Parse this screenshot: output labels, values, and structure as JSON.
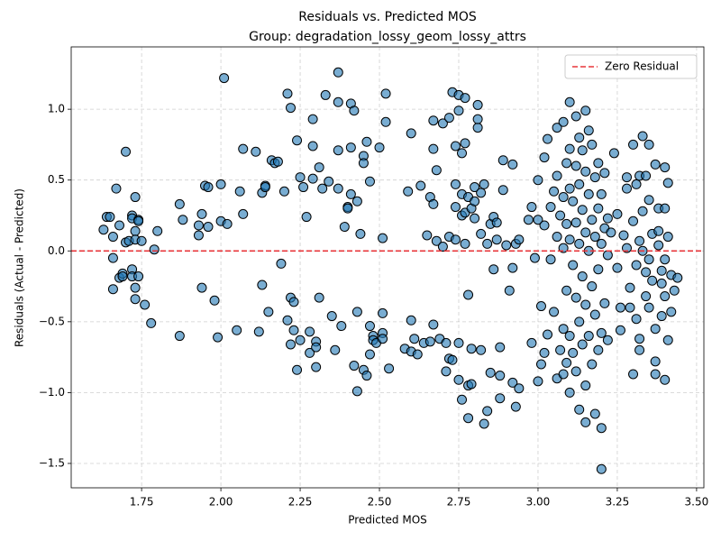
{
  "chart_data": {
    "type": "scatter",
    "title": "Residuals vs. Predicted MOS",
    "subtitle": "Group: degradation_lossy_geom_lossy_attrs",
    "x_label": "Predicted MOS",
    "y_label": "Residuals (Actual - Predicted)",
    "color": "#1f77b4",
    "grid": true,
    "legend_position": "upper-right",
    "reference_line": {
      "name": "Zero Residual",
      "value": 0,
      "color": "#e8363a"
    },
    "xlim": [
      1.528,
      3.523
    ],
    "ylim": [
      -1.672,
      1.44
    ],
    "xticks": [
      1.75,
      {
        "value": 2,
        "label": "2.00"
      },
      2.25,
      {
        "value": 2.5,
        "label": "2.50"
      },
      2.75,
      {
        "value": 3,
        "label": "3.00"
      },
      3.25,
      {
        "value": 3.5,
        "label": "3.50"
      }
    ],
    "yticks": [
      {
        "value": -1.5,
        "label": "−1.5"
      },
      {
        "value": -1,
        "label": "−1.0"
      },
      {
        "value": -0.5,
        "label": "−0.5"
      },
      {
        "value": 0,
        "label": "0.0"
      },
      {
        "value": 0.5,
        "label": "0.5"
      },
      {
        "value": 1,
        "label": "1.0"
      }
    ],
    "x": [
      1.63,
      1.64,
      1.65,
      1.66,
      1.66,
      1.66,
      1.67,
      1.68,
      1.68,
      1.69,
      1.69,
      1.7,
      1.7,
      1.71,
      1.72,
      1.72,
      1.72,
      1.72,
      1.73,
      1.73,
      1.73,
      1.73,
      1.73,
      1.74,
      1.74,
      1.74,
      1.75,
      1.76,
      1.78,
      1.79,
      1.8,
      1.87,
      1.87,
      1.88,
      1.93,
      1.93,
      1.94,
      1.94,
      1.95,
      1.96,
      1.96,
      1.98,
      1.99,
      2.0,
      2.0,
      2.01,
      2.02,
      2.05,
      2.06,
      2.07,
      2.07,
      2.11,
      2.12,
      2.13,
      2.13,
      2.14,
      2.14,
      2.15,
      2.16,
      2.17,
      2.18,
      2.19,
      2.2,
      2.21,
      2.21,
      2.22,
      2.22,
      2.22,
      2.23,
      2.23,
      2.24,
      2.24,
      2.25,
      2.25,
      2.26,
      2.27,
      2.28,
      2.28,
      2.29,
      2.29,
      2.29,
      2.3,
      2.3,
      2.3,
      2.31,
      2.31,
      2.32,
      2.33,
      2.34,
      2.35,
      2.36,
      2.37,
      2.37,
      2.37,
      2.37,
      2.38,
      2.39,
      2.4,
      2.4,
      2.41,
      2.41,
      2.41,
      2.42,
      2.42,
      2.43,
      2.43,
      2.43,
      2.44,
      2.45,
      2.45,
      2.45,
      2.46,
      2.46,
      2.47,
      2.47,
      2.47,
      2.48,
      2.48,
      2.49,
      2.5,
      2.51,
      2.51,
      2.51,
      2.51,
      2.52,
      2.52,
      2.53,
      2.58,
      2.59,
      2.6,
      2.6,
      2.6,
      2.61,
      2.62,
      2.63,
      2.64,
      2.65,
      2.66,
      2.66,
      2.67,
      2.67,
      2.67,
      2.67,
      2.68,
      2.68,
      2.69,
      2.7,
      2.7,
      2.71,
      2.71,
      2.72,
      2.72,
      2.72,
      2.73,
      2.73,
      2.74,
      2.74,
      2.74,
      2.74,
      2.75,
      2.75,
      2.75,
      2.75,
      2.76,
      2.76,
      2.76,
      2.76,
      2.77,
      2.77,
      2.77,
      2.77,
      2.78,
      2.78,
      2.78,
      2.78,
      2.79,
      2.79,
      2.79,
      2.8,
      2.8,
      2.8,
      2.81,
      2.81,
      2.81,
      2.82,
      2.82,
      2.82,
      2.83,
      2.83,
      2.84,
      2.84,
      2.85,
      2.85,
      2.86,
      2.86,
      2.87,
      2.87,
      2.88,
      2.88,
      2.88,
      2.89,
      2.89,
      2.9,
      2.91,
      2.92,
      2.92,
      2.92,
      2.93,
      2.93,
      2.94,
      2.94,
      2.97,
      2.98,
      2.98,
      2.99,
      3.0,
      3.0,
      3.0,
      3.01,
      3.01,
      3.02,
      3.02,
      3.02,
      3.03,
      3.03,
      3.04,
      3.04,
      3.05,
      3.05,
      3.06,
      3.06,
      3.06,
      3.06,
      3.07,
      3.07,
      3.08,
      3.08,
      3.08,
      3.08,
      3.08,
      3.09,
      3.09,
      3.09,
      3.09,
      3.1,
      3.1,
      3.1,
      3.1,
      3.1,
      3.1,
      3.11,
      3.11,
      3.11,
      3.12,
      3.12,
      3.12,
      3.12,
      3.12,
      3.13,
      3.13,
      3.13,
      3.13,
      3.13,
      3.14,
      3.14,
      3.14,
      3.14,
      3.15,
      3.15,
      3.15,
      3.15,
      3.15,
      3.15,
      3.16,
      3.16,
      3.16,
      3.16,
      3.17,
      3.17,
      3.17,
      3.17,
      3.18,
      3.18,
      3.18,
      3.18,
      3.19,
      3.19,
      3.19,
      3.19,
      3.2,
      3.2,
      3.2,
      3.2,
      3.2,
      3.21,
      3.21,
      3.21,
      3.22,
      3.22,
      3.22,
      3.23,
      3.24,
      3.25,
      3.26,
      3.26,
      3.27,
      3.28,
      3.28,
      3.29,
      3.29,
      3.3,
      3.3,
      3.3,
      3.31,
      3.31,
      3.31,
      3.32,
      3.32,
      3.32,
      3.33,
      3.33,
      3.33,
      3.34,
      3.34,
      3.35,
      3.35,
      3.35,
      3.35,
      3.36,
      3.36,
      3.37,
      3.37,
      3.37,
      3.37,
      3.38,
      3.38,
      3.38,
      3.39,
      3.39,
      3.39,
      3.4,
      3.4,
      3.4,
      3.4,
      3.41,
      3.41,
      3.41,
      3.42,
      3.42,
      3.43,
      3.44,
      3.4,
      3.32,
      3.25,
      3.28,
      3.34
    ],
    "values": [
      0.15,
      0.24,
      0.24,
      0.1,
      -0.05,
      -0.27,
      0.44,
      0.18,
      -0.19,
      -0.16,
      -0.18,
      0.7,
      0.06,
      0.07,
      0.25,
      0.23,
      -0.13,
      -0.18,
      0.38,
      0.14,
      0.08,
      -0.26,
      -0.34,
      0.22,
      0.21,
      -0.18,
      0.07,
      -0.38,
      -0.51,
      0.01,
      0.14,
      0.33,
      -0.6,
      0.22,
      0.18,
      0.11,
      -0.26,
      0.26,
      0.46,
      0.45,
      0.17,
      -0.35,
      -0.61,
      0.21,
      0.47,
      1.22,
      0.19,
      -0.56,
      0.42,
      0.72,
      0.26,
      0.7,
      -0.57,
      0.41,
      -0.24,
      0.46,
      0.45,
      -0.43,
      0.64,
      0.62,
      0.63,
      -0.09,
      0.42,
      1.11,
      -0.49,
      1.01,
      -0.66,
      -0.33,
      -0.36,
      -0.56,
      -0.84,
      0.78,
      0.52,
      -0.63,
      0.45,
      0.24,
      -0.72,
      -0.57,
      0.74,
      0.93,
      0.51,
      -0.82,
      -0.64,
      -0.68,
      0.59,
      -0.33,
      0.44,
      1.1,
      0.49,
      -0.46,
      -0.7,
      1.26,
      1.05,
      0.71,
      0.44,
      -0.53,
      0.17,
      0.31,
      0.3,
      0.73,
      1.04,
      0.4,
      0.99,
      -0.81,
      0.35,
      -0.43,
      -0.99,
      0.12,
      0.67,
      0.62,
      -0.84,
      0.77,
      -0.88,
      0.49,
      -0.53,
      -0.73,
      -0.6,
      -0.63,
      -0.65,
      0.73,
      0.09,
      -0.58,
      -0.62,
      -0.44,
      0.91,
      1.11,
      -0.83,
      -0.69,
      0.42,
      0.83,
      -0.49,
      -0.71,
      -0.62,
      -0.73,
      0.46,
      -0.65,
      0.11,
      0.38,
      -0.64,
      0.33,
      0.72,
      0.92,
      -0.52,
      0.07,
      0.57,
      -0.62,
      0.9,
      0.03,
      -0.85,
      -0.65,
      0.94,
      -0.76,
      0.1,
      1.12,
      -0.77,
      0.08,
      0.31,
      0.74,
      0.47,
      0.99,
      1.1,
      -0.91,
      -0.65,
      0.69,
      0.4,
      0.25,
      -1.05,
      1.08,
      0.76,
      0.05,
      0.27,
      -0.95,
      -1.18,
      0.38,
      -0.31,
      0.3,
      -0.69,
      -0.94,
      0.45,
      0.35,
      0.23,
      0.87,
      0.93,
      1.03,
      0.12,
      -0.7,
      0.41,
      -1.22,
      0.47,
      -1.13,
      0.05,
      0.19,
      -0.86,
      -0.13,
      0.24,
      0.2,
      0.08,
      -1.04,
      -0.88,
      -0.68,
      0.43,
      0.64,
      0.04,
      -0.28,
      -0.93,
      -0.12,
      0.61,
      0.05,
      -1.1,
      0.08,
      -0.97,
      0.22,
      0.31,
      -0.65,
      -0.05,
      0.5,
      -0.92,
      0.22,
      -0.39,
      -0.8,
      0.66,
      -0.72,
      0.18,
      0.79,
      -0.59,
      0.31,
      -0.06,
      0.42,
      -0.43,
      0.87,
      0.53,
      0.1,
      -0.9,
      -0.7,
      0.25,
      0.91,
      0.38,
      0.02,
      -0.55,
      -0.87,
      0.62,
      0.19,
      -0.28,
      -0.79,
      1.05,
      0.72,
      0.44,
      0.08,
      -0.6,
      -1.0,
      0.35,
      -0.1,
      -0.72,
      0.95,
      0.6,
      0.2,
      -0.33,
      -0.85,
      0.8,
      0.47,
      0.05,
      -0.5,
      -1.12,
      0.71,
      0.29,
      -0.18,
      -0.66,
      0.99,
      0.56,
      0.13,
      -0.38,
      -0.95,
      -1.21,
      0.85,
      0.4,
      0.0,
      -0.6,
      0.75,
      0.22,
      -0.25,
      -0.8,
      0.52,
      0.1,
      -0.45,
      -1.15,
      0.62,
      0.3,
      -0.13,
      -0.7,
      0.4,
      0.05,
      -0.58,
      -1.25,
      -1.54,
      0.55,
      0.16,
      -0.37,
      0.23,
      -0.03,
      -0.63,
      0.13,
      0.69,
      0.26,
      -0.4,
      -0.56,
      0.11,
      0.52,
      0.02,
      -0.26,
      -0.4,
      -0.87,
      0.75,
      0.21,
      0.47,
      -0.1,
      -0.48,
      -0.7,
      -0.62,
      0.53,
      0.81,
      0.28,
      0.0,
      -0.32,
      0.53,
      0.75,
      0.36,
      -0.06,
      -0.4,
      -0.21,
      0.12,
      -0.87,
      -0.78,
      0.61,
      -0.55,
      0.04,
      0.3,
      0.14,
      -0.14,
      -0.46,
      -0.23,
      0.59,
      -0.91,
      0.3,
      -0.06,
      -0.63,
      0.48,
      0.1,
      -0.43,
      -0.17,
      -0.28,
      -0.19,
      -0.32,
      0.07,
      -0.12,
      0.44,
      -0.15
    ]
  }
}
